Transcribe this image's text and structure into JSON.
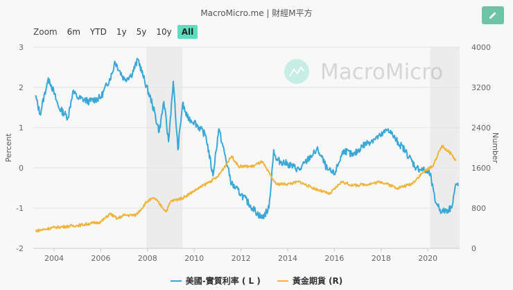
{
  "header": {
    "title": "MacroMicro.me | 財經M平方",
    "edit_icon": "pencil-icon",
    "edit_color": "#6cc3a6"
  },
  "zoom": {
    "label": "Zoom",
    "buttons": [
      "6m",
      "YTD",
      "1y",
      "5y",
      "10y",
      "All"
    ],
    "active": "All",
    "active_color": "#5fdcbf"
  },
  "watermark": "MacroMicro",
  "chart_data": {
    "type": "line",
    "title": "",
    "xlabel": "",
    "ylabel_left": "Percent",
    "ylabel_right": "Number",
    "xlim": [
      2003.0,
      2021.4
    ],
    "ylim_left": [
      -2,
      3
    ],
    "ylim_right": [
      0,
      4000
    ],
    "x_ticks": [
      "2004",
      "2006",
      "2008",
      "2010",
      "2012",
      "2014",
      "2016",
      "2018",
      "2020"
    ],
    "y_ticks_left": [
      "-2",
      "-1",
      "0",
      "1",
      "2",
      "3"
    ],
    "y_ticks_right": [
      "0",
      "800",
      "1600",
      "2400",
      "3200",
      "4000"
    ],
    "grid": true,
    "legend_position": "bottom",
    "shaded_periods": [
      [
        2007.95,
        2009.5
      ],
      [
        2020.1,
        2021.4
      ]
    ],
    "series": [
      {
        "name": "美國-實質利率 ( L )",
        "axis": "left",
        "color": "#3aa8d6",
        "x": [
          2003.2,
          2003.4,
          2003.7,
          2003.8,
          2004.2,
          2004.6,
          2004.8,
          2005.0,
          2005.5,
          2006.0,
          2006.5,
          2006.6,
          2007.0,
          2007.3,
          2007.6,
          2007.8,
          2008.2,
          2008.5,
          2008.7,
          2008.9,
          2009.1,
          2009.3,
          2009.5,
          2009.7,
          2010.0,
          2010.5,
          2010.8,
          2011.05,
          2011.6,
          2012.0,
          2012.5,
          2012.9,
          2013.2,
          2013.4,
          2013.5,
          2014.0,
          2014.5,
          2015.0,
          2015.3,
          2015.7,
          2016.0,
          2016.4,
          2016.8,
          2017.2,
          2017.7,
          2018.0,
          2018.3,
          2018.6,
          2019.0,
          2019.5,
          2019.8,
          2020.1,
          2020.3,
          2020.6,
          2021.0,
          2021.2,
          2021.3
        ],
        "values": [
          1.8,
          1.33,
          2.1,
          2.2,
          1.5,
          1.25,
          1.9,
          1.75,
          1.65,
          1.75,
          2.36,
          2.65,
          2.2,
          2.3,
          2.7,
          2.3,
          1.6,
          0.9,
          1.65,
          0.65,
          2.15,
          0.45,
          1.6,
          1.25,
          1.15,
          0.8,
          -0.2,
          0.97,
          -0.4,
          -0.65,
          -1.0,
          -1.25,
          -1.0,
          0.45,
          0.2,
          0.1,
          -0.05,
          0.3,
          0.45,
          -0.05,
          -0.15,
          0.45,
          0.3,
          0.55,
          0.72,
          0.8,
          0.97,
          0.72,
          0.45,
          0.0,
          -0.05,
          -0.15,
          -0.8,
          -1.1,
          -1.0,
          -0.4,
          -0.45
        ]
      },
      {
        "name": "黃金期貨 (R)",
        "axis": "right",
        "color": "#f0b43c",
        "x": [
          2003.2,
          2004.0,
          2005.0,
          2006.0,
          2006.4,
          2006.7,
          2007.0,
          2007.5,
          2008.0,
          2008.3,
          2008.8,
          2009.0,
          2009.5,
          2010.0,
          2010.5,
          2011.0,
          2011.6,
          2011.9,
          2012.5,
          2012.9,
          2013.3,
          2013.5,
          2014.0,
          2014.5,
          2015.0,
          2015.8,
          2016.3,
          2016.8,
          2017.5,
          2018.0,
          2018.7,
          2019.3,
          2019.8,
          2020.2,
          2020.6,
          2021.0,
          2021.2
        ],
        "values": [
          345,
          415,
          455,
          525,
          690,
          590,
          660,
          660,
          940,
          1000,
          730,
          940,
          1000,
          1145,
          1280,
          1420,
          1835,
          1630,
          1630,
          1725,
          1420,
          1280,
          1280,
          1325,
          1215,
          1080,
          1325,
          1250,
          1280,
          1325,
          1200,
          1280,
          1515,
          1630,
          2040,
          1875,
          1740
        ]
      }
    ]
  }
}
